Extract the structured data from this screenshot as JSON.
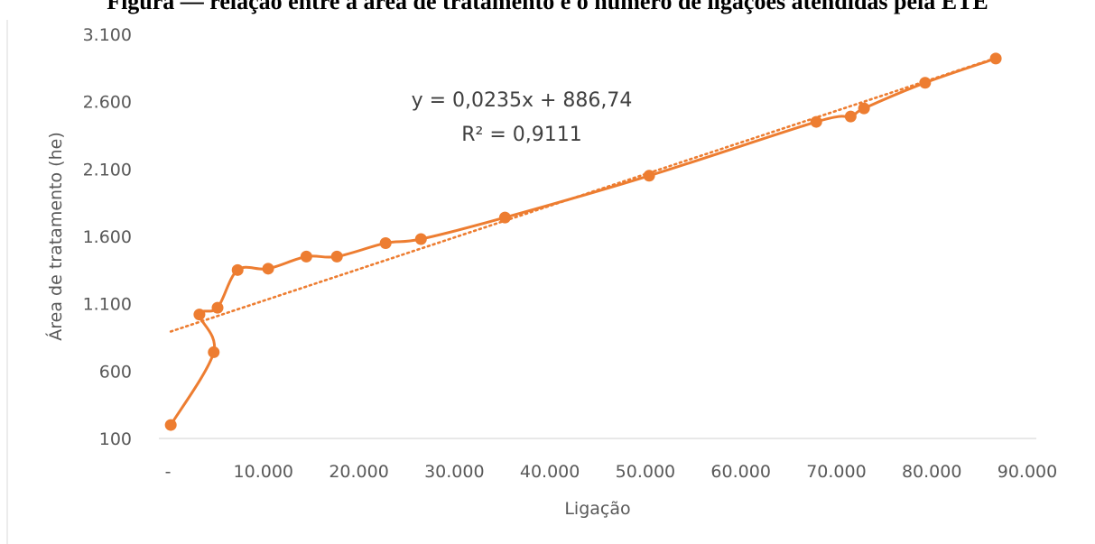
{
  "caption": "Figura — relação entre a área de tratamento e o número de ligações atendidas pela ETE",
  "chart_data": {
    "type": "scatter",
    "title": "",
    "xlabel": "Ligação",
    "ylabel": "Área de tratamento (he)",
    "xlim": [
      0,
      90000
    ],
    "ylim": [
      100,
      3100
    ],
    "x_ticks": [
      "-",
      "10.000",
      "20.000",
      "30.000",
      "40.000",
      "50.000",
      "60.000",
      "70.000",
      "80.000",
      "90.000"
    ],
    "y_ticks": [
      "100",
      "600",
      "1.100",
      "1.600",
      "2.100",
      "2.600",
      "3.100"
    ],
    "x_tick_values": [
      0,
      10000,
      20000,
      30000,
      40000,
      50000,
      60000,
      70000,
      80000,
      90000
    ],
    "y_tick_values": [
      100,
      600,
      1100,
      1600,
      2100,
      2600,
      3100
    ],
    "grid": false,
    "legend": "none",
    "series": [
      {
        "color": "#ED7D31",
        "x": [
          300,
          4800,
          3300,
          5200,
          7300,
          10500,
          14500,
          17700,
          22800,
          26500,
          35300,
          50400,
          67900,
          71500,
          72900,
          79300,
          86700
        ],
        "y": [
          200,
          740,
          1020,
          1070,
          1350,
          1360,
          1450,
          1450,
          1550,
          1580,
          1740,
          2050,
          2450,
          2490,
          2550,
          2740,
          2920
        ]
      }
    ],
    "trendline": {
      "type": "linear",
      "slope": 0.0235,
      "intercept": 886.74,
      "x_range": [
        300,
        86700
      ],
      "style": "dotted",
      "color": "#ED7D31",
      "equation": "y = 0,0235x + 886,74",
      "r_squared": "R² = 0,9111"
    }
  }
}
